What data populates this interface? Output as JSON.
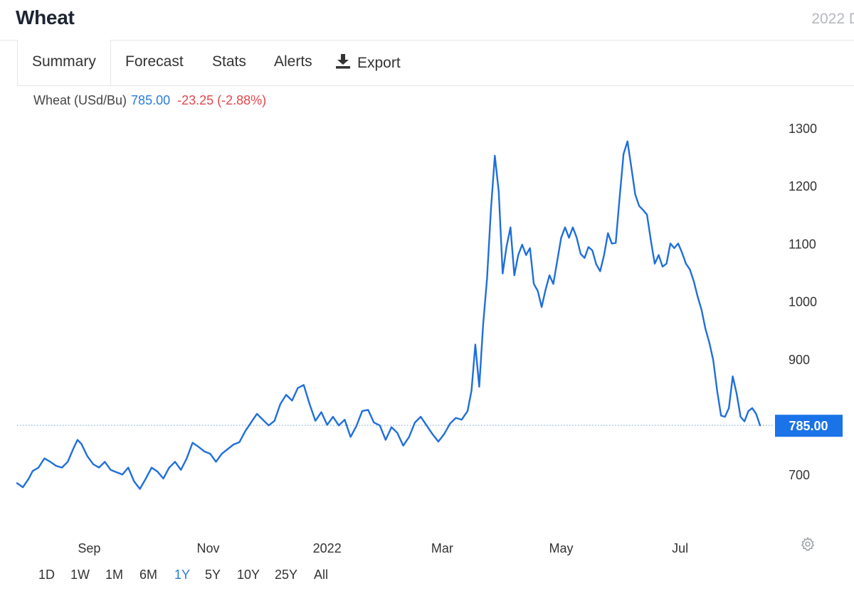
{
  "header": {
    "title": "Wheat",
    "top_right": "2022 D"
  },
  "tabs": [
    {
      "label": "Summary",
      "active": true
    },
    {
      "label": "Forecast"
    },
    {
      "label": "Stats"
    },
    {
      "label": "Alerts"
    },
    {
      "label": "Export",
      "icon": "download-icon"
    }
  ],
  "quote": {
    "name": "Wheat (USd/Bu)",
    "price": "785.00",
    "change": "-23.25 (-2.88%)"
  },
  "ranges": [
    {
      "label": "1D"
    },
    {
      "label": "1W"
    },
    {
      "label": "1M"
    },
    {
      "label": "6M"
    },
    {
      "label": "1Y",
      "active": true
    },
    {
      "label": "5Y"
    },
    {
      "label": "10Y"
    },
    {
      "label": "25Y"
    },
    {
      "label": "All"
    }
  ],
  "colors": {
    "line": "#1f6fdb",
    "accent": "#1a73e8",
    "negative": "#e4464d",
    "tag_bg": "#1a73e8"
  },
  "chart_data": {
    "type": "line",
    "ylim": [
      620,
      1330
    ],
    "y_ticks": [
      700,
      800,
      900,
      1000,
      1100,
      1200,
      1300
    ],
    "y_tick_labels": [
      "700",
      "",
      "900",
      "1000",
      "1100",
      "1200",
      "1300"
    ],
    "x_tick_labels": [
      {
        "label": "Sep",
        "x": "2021-09-01"
      },
      {
        "label": "Nov",
        "x": "2021-11-01"
      },
      {
        "label": "2022",
        "x": "2022-01-01"
      },
      {
        "label": "Mar",
        "x": "2022-03-01"
      },
      {
        "label": "May",
        "x": "2022-05-01"
      },
      {
        "label": "Jul",
        "x": "2022-07-01"
      }
    ],
    "last_value": 785,
    "last_label": "785.00",
    "series": [
      {
        "values": [
          [
            "2021-07-26",
            685
          ],
          [
            "2021-07-29",
            678
          ],
          [
            "2021-08-01",
            693
          ],
          [
            "2021-08-03",
            706
          ],
          [
            "2021-08-06",
            712
          ],
          [
            "2021-08-09",
            728
          ],
          [
            "2021-08-12",
            722
          ],
          [
            "2021-08-15",
            715
          ],
          [
            "2021-08-18",
            712
          ],
          [
            "2021-08-21",
            722
          ],
          [
            "2021-08-24",
            746
          ],
          [
            "2021-08-26",
            760
          ],
          [
            "2021-08-28",
            753
          ],
          [
            "2021-08-31",
            732
          ],
          [
            "2021-09-03",
            718
          ],
          [
            "2021-09-06",
            712
          ],
          [
            "2021-09-09",
            722
          ],
          [
            "2021-09-12",
            708
          ],
          [
            "2021-09-15",
            704
          ],
          [
            "2021-09-18",
            700
          ],
          [
            "2021-09-21",
            712
          ],
          [
            "2021-09-24",
            688
          ],
          [
            "2021-09-27",
            675
          ],
          [
            "2021-09-30",
            693
          ],
          [
            "2021-10-03",
            712
          ],
          [
            "2021-10-06",
            705
          ],
          [
            "2021-10-09",
            693
          ],
          [
            "2021-10-12",
            712
          ],
          [
            "2021-10-15",
            722
          ],
          [
            "2021-10-18",
            708
          ],
          [
            "2021-10-21",
            728
          ],
          [
            "2021-10-24",
            755
          ],
          [
            "2021-10-27",
            748
          ],
          [
            "2021-10-30",
            740
          ],
          [
            "2021-11-02",
            736
          ],
          [
            "2021-11-05",
            722
          ],
          [
            "2021-11-08",
            736
          ],
          [
            "2021-11-11",
            744
          ],
          [
            "2021-11-14",
            752
          ],
          [
            "2021-11-17",
            756
          ],
          [
            "2021-11-20",
            775
          ],
          [
            "2021-11-23",
            790
          ],
          [
            "2021-11-26",
            805
          ],
          [
            "2021-11-29",
            795
          ],
          [
            "2021-12-02",
            785
          ],
          [
            "2021-12-05",
            793
          ],
          [
            "2021-12-08",
            822
          ],
          [
            "2021-12-11",
            838
          ],
          [
            "2021-12-14",
            828
          ],
          [
            "2021-12-17",
            850
          ],
          [
            "2021-12-20",
            855
          ],
          [
            "2021-12-23",
            822
          ],
          [
            "2021-12-26",
            793
          ],
          [
            "2021-12-29",
            808
          ],
          [
            "2022-01-01",
            786
          ],
          [
            "2022-01-04",
            800
          ],
          [
            "2022-01-07",
            785
          ],
          [
            "2022-01-10",
            795
          ],
          [
            "2022-01-13",
            765
          ],
          [
            "2022-01-16",
            784
          ],
          [
            "2022-01-19",
            810
          ],
          [
            "2022-01-22",
            812
          ],
          [
            "2022-01-25",
            790
          ],
          [
            "2022-01-28",
            785
          ],
          [
            "2022-01-31",
            760
          ],
          [
            "2022-02-03",
            782
          ],
          [
            "2022-02-06",
            772
          ],
          [
            "2022-02-09",
            750
          ],
          [
            "2022-02-12",
            765
          ],
          [
            "2022-02-15",
            790
          ],
          [
            "2022-02-18",
            800
          ],
          [
            "2022-02-21",
            785
          ],
          [
            "2022-02-24",
            770
          ],
          [
            "2022-02-27",
            757
          ],
          [
            "2022-03-02",
            770
          ],
          [
            "2022-03-05",
            788
          ],
          [
            "2022-03-08",
            798
          ],
          [
            "2022-03-11",
            795
          ],
          [
            "2022-03-14",
            810
          ],
          [
            "2022-03-16",
            845
          ],
          [
            "2022-03-18",
            925
          ],
          [
            "2022-03-20",
            852
          ],
          [
            "2022-03-22",
            960
          ],
          [
            "2022-03-24",
            1040
          ],
          [
            "2022-03-26",
            1160
          ],
          [
            "2022-03-28",
            1252
          ],
          [
            "2022-03-30",
            1190
          ],
          [
            "2022-04-01",
            1048
          ],
          [
            "2022-04-03",
            1095
          ],
          [
            "2022-04-05",
            1128
          ],
          [
            "2022-04-07",
            1045
          ],
          [
            "2022-04-09",
            1080
          ],
          [
            "2022-04-11",
            1098
          ],
          [
            "2022-04-13",
            1080
          ],
          [
            "2022-04-15",
            1092
          ],
          [
            "2022-04-17",
            1030
          ],
          [
            "2022-04-19",
            1018
          ],
          [
            "2022-04-21",
            990
          ],
          [
            "2022-04-23",
            1020
          ],
          [
            "2022-04-25",
            1045
          ],
          [
            "2022-04-27",
            1030
          ],
          [
            "2022-04-29",
            1070
          ],
          [
            "2022-05-01",
            1110
          ],
          [
            "2022-05-03",
            1128
          ],
          [
            "2022-05-05",
            1110
          ],
          [
            "2022-05-07",
            1128
          ],
          [
            "2022-05-09",
            1110
          ],
          [
            "2022-05-11",
            1082
          ],
          [
            "2022-05-13",
            1075
          ],
          [
            "2022-05-15",
            1094
          ],
          [
            "2022-05-17",
            1088
          ],
          [
            "2022-05-19",
            1064
          ],
          [
            "2022-05-21",
            1052
          ],
          [
            "2022-05-23",
            1080
          ],
          [
            "2022-05-25",
            1118
          ],
          [
            "2022-05-27",
            1100
          ],
          [
            "2022-05-29",
            1101
          ],
          [
            "2022-05-31",
            1180
          ],
          [
            "2022-06-02",
            1255
          ],
          [
            "2022-06-04",
            1277
          ],
          [
            "2022-06-06",
            1232
          ],
          [
            "2022-06-08",
            1185
          ],
          [
            "2022-06-10",
            1165
          ],
          [
            "2022-06-12",
            1158
          ],
          [
            "2022-06-14",
            1150
          ],
          [
            "2022-06-16",
            1105
          ],
          [
            "2022-06-18",
            1065
          ],
          [
            "2022-06-20",
            1080
          ],
          [
            "2022-06-22",
            1060
          ],
          [
            "2022-06-24",
            1065
          ],
          [
            "2022-06-26",
            1100
          ],
          [
            "2022-06-28",
            1092
          ],
          [
            "2022-06-30",
            1100
          ],
          [
            "2022-07-02",
            1084
          ],
          [
            "2022-07-04",
            1065
          ],
          [
            "2022-07-06",
            1055
          ],
          [
            "2022-07-08",
            1035
          ],
          [
            "2022-07-10",
            1008
          ],
          [
            "2022-07-12",
            985
          ],
          [
            "2022-07-14",
            952
          ],
          [
            "2022-07-16",
            928
          ],
          [
            "2022-07-18",
            898
          ],
          [
            "2022-07-20",
            845
          ],
          [
            "2022-07-22",
            802
          ],
          [
            "2022-07-24",
            800
          ],
          [
            "2022-07-26",
            815
          ],
          [
            "2022-07-28",
            870
          ],
          [
            "2022-07-30",
            840
          ],
          [
            "2022-08-01",
            800
          ],
          [
            "2022-08-03",
            792
          ],
          [
            "2022-08-05",
            810
          ],
          [
            "2022-08-07",
            815
          ],
          [
            "2022-08-09",
            805
          ],
          [
            "2022-08-11",
            785
          ]
        ]
      }
    ]
  }
}
